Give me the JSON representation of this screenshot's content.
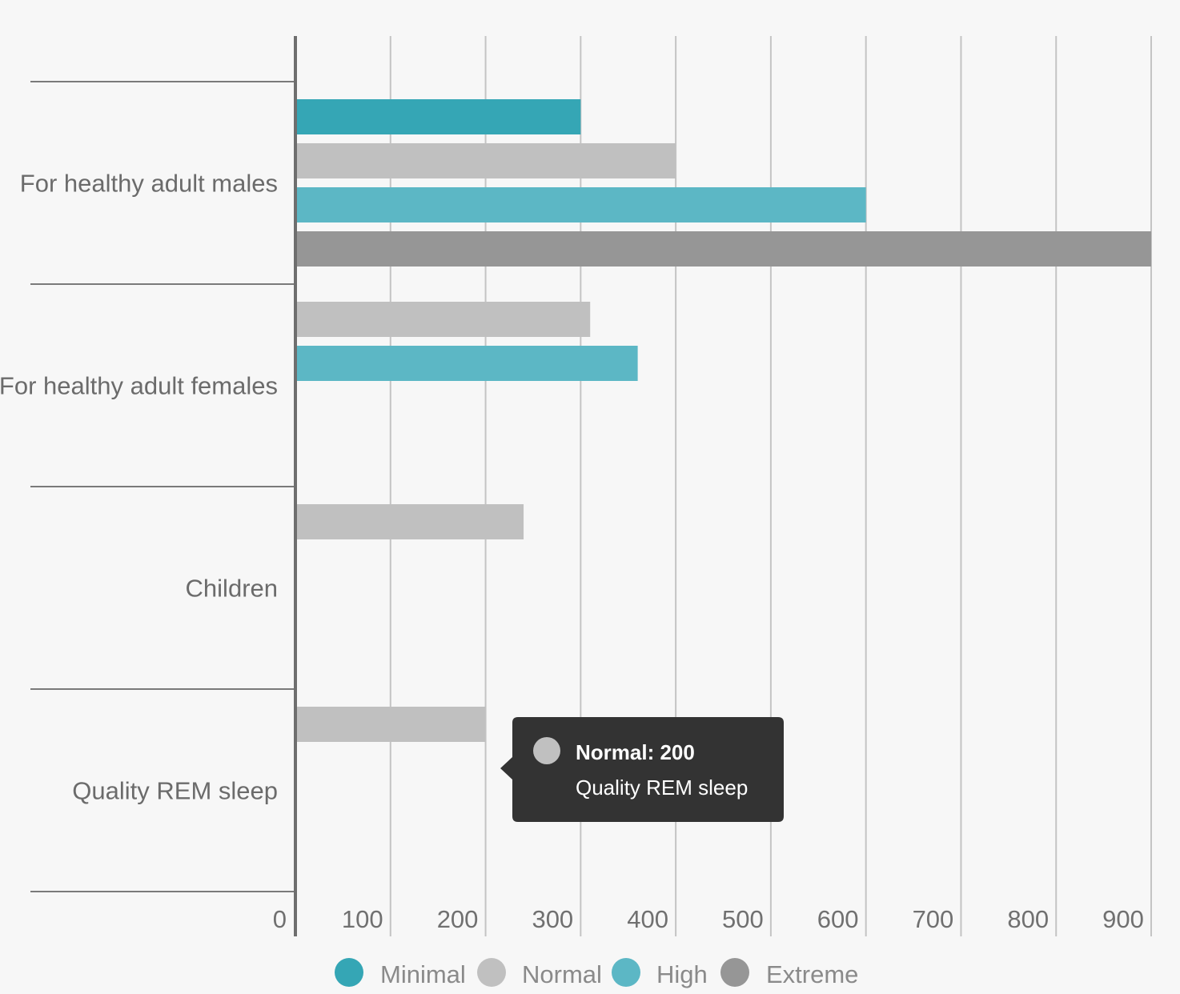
{
  "chart_data": {
    "type": "bar",
    "orientation": "horizontal",
    "categories": [
      "For healthy adult males",
      "For healthy adult females",
      "Children",
      "Quality REM sleep"
    ],
    "series": [
      {
        "name": "Minimal",
        "color": "#35a6b5",
        "values": [
          300,
          null,
          null,
          null
        ]
      },
      {
        "name": "Normal",
        "color": "#c0c0c0",
        "values": [
          400,
          310,
          240,
          200
        ]
      },
      {
        "name": "High",
        "color": "#5cb7c5",
        "values": [
          600,
          360,
          null,
          null
        ]
      },
      {
        "name": "Extreme",
        "color": "#969696",
        "values": [
          900,
          null,
          null,
          null
        ]
      }
    ],
    "xticks": [
      0,
      100,
      200,
      300,
      400,
      500,
      600,
      700,
      800,
      900
    ],
    "tick_labels": [
      "0",
      "100",
      "200",
      "300",
      "400",
      "500",
      "600",
      "700",
      "800",
      "900"
    ],
    "xlim": [
      0,
      900
    ],
    "grid": true,
    "legend": {
      "position": "bottom",
      "items": [
        "Minimal",
        "Normal",
        "High",
        "Extreme"
      ]
    },
    "tooltip": {
      "title": "Normal: 200",
      "subtitle": "Quality REM sleep",
      "series": "Normal",
      "category": "Quality REM sleep",
      "color": "#c0c0c0"
    }
  }
}
